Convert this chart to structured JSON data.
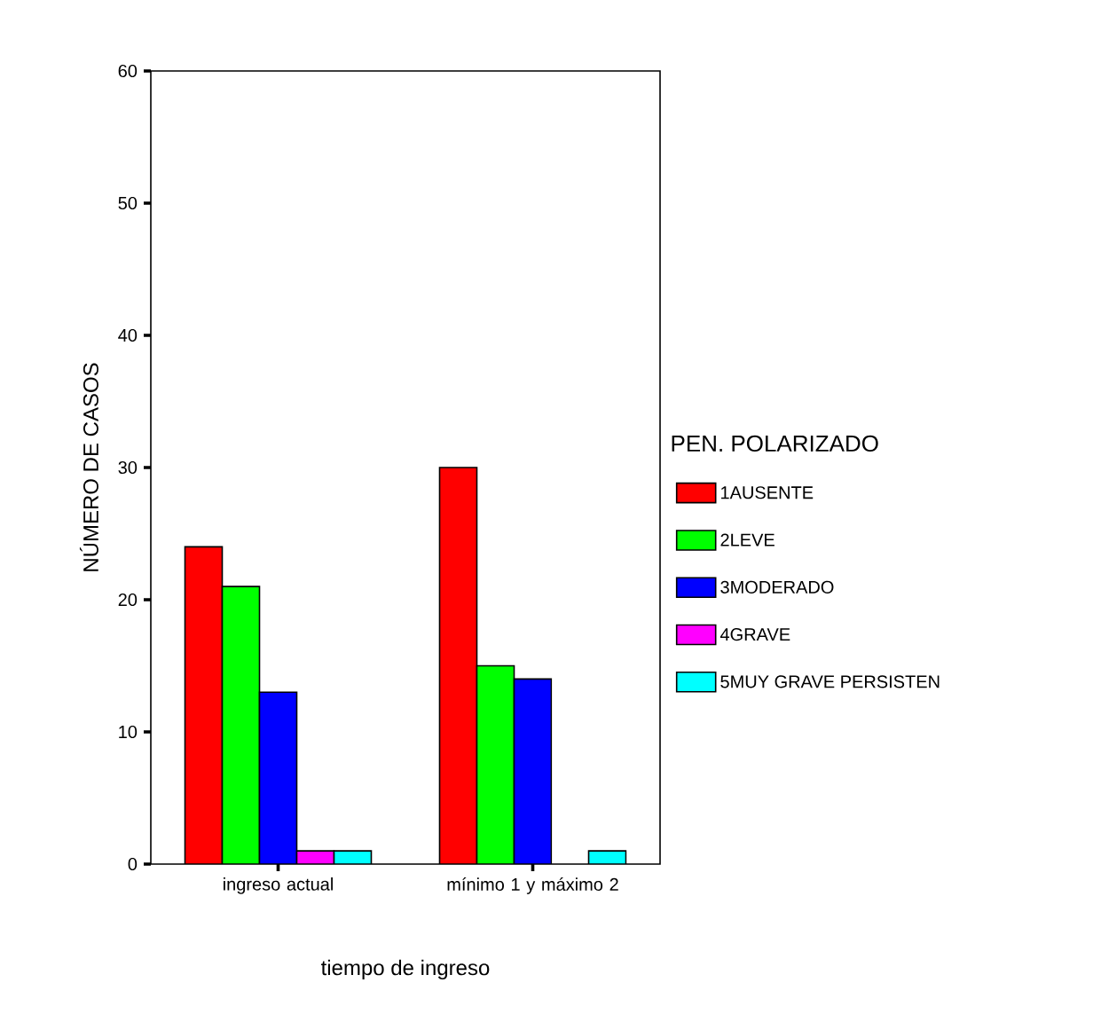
{
  "chart_data": {
    "type": "bar",
    "xlabel": "tiempo de ingreso",
    "ylabel": "NÚMERO DE CASOS",
    "legend_title": "PEN. POLARIZADO",
    "categories": [
      "ingreso actual",
      "mínimo 1 y máximo 2"
    ],
    "series": [
      {
        "name": "1AUSENTE",
        "color": "#ff0000",
        "values": [
          24,
          30
        ]
      },
      {
        "name": "2LEVE",
        "color": "#00ff00",
        "values": [
          21,
          15
        ]
      },
      {
        "name": "3MODERADO",
        "color": "#0000ff",
        "values": [
          13,
          14
        ]
      },
      {
        "name": "4GRAVE",
        "color": "#ff00ff",
        "values": [
          1,
          null
        ]
      },
      {
        "name": "5MUY GRAVE PERSISTEN",
        "color": "#00ffff",
        "values": [
          1,
          1
        ]
      }
    ],
    "ylim": [
      0,
      60
    ],
    "yticks": [
      0,
      10,
      20,
      30,
      40,
      50,
      60
    ],
    "grid": false,
    "legend": "right"
  }
}
